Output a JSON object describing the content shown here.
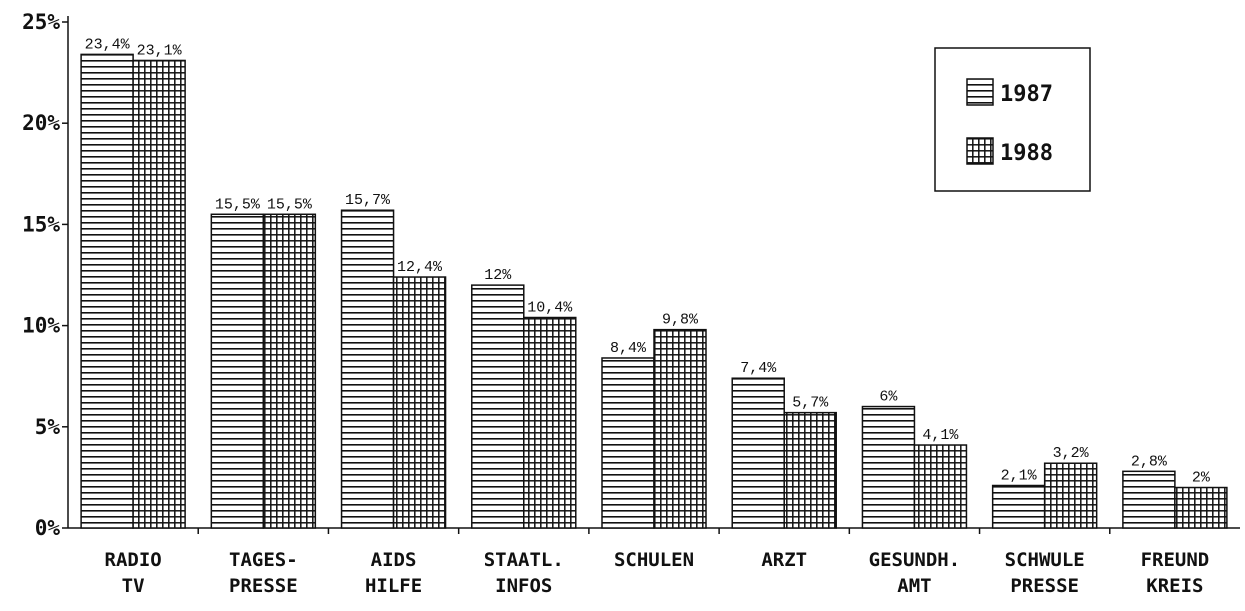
{
  "chart_data": {
    "type": "bar",
    "categories": [
      [
        "RADIO",
        "TV"
      ],
      [
        "TAGES-",
        "PRESSE"
      ],
      [
        "AIDS",
        "HILFE"
      ],
      [
        "STAATL.",
        "INFOS"
      ],
      [
        "SCHULEN"
      ],
      [
        "ARZT"
      ],
      [
        "GESUNDH.",
        "AMT"
      ],
      [
        "SCHWULE",
        "PRESSE"
      ],
      [
        "FREUND",
        "KREIS"
      ]
    ],
    "series": [
      {
        "name": "1987",
        "pattern": "horizontal-lines",
        "values": [
          23.4,
          15.5,
          15.7,
          12,
          8.4,
          7.4,
          6,
          2.1,
          2.8
        ],
        "labels": [
          "23,4%",
          "15,5%",
          "15,7%",
          "12%",
          "8,4%",
          "7,4%",
          "6%",
          "2,1%",
          "2,8%"
        ]
      },
      {
        "name": "1988",
        "pattern": "grid",
        "values": [
          23.1,
          15.5,
          12.4,
          10.4,
          9.8,
          5.7,
          4.1,
          3.2,
          2
        ],
        "labels": [
          "23,1%",
          "15,5%",
          "12,4%",
          "10,4%",
          "9,8%",
          "5,7%",
          "4,1%",
          "3,2%",
          "2%"
        ]
      }
    ],
    "ylim": [
      0,
      25
    ],
    "yticks": [
      0,
      5,
      10,
      15,
      20,
      25
    ],
    "ytick_labels": [
      "0%",
      "5%",
      "10%",
      "15%",
      "20%",
      "25%"
    ],
    "legend_position": "top-right",
    "grid": false,
    "colors": {
      "ink": "#111111",
      "background": "#ffffff"
    }
  }
}
